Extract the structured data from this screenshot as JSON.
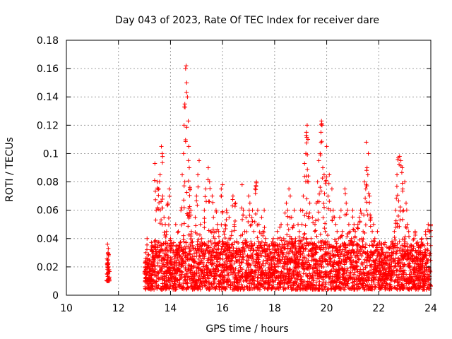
{
  "chart_data": {
    "type": "scatter",
    "title": "Day 043 of 2023, Rate Of TEC Index for receiver dare",
    "xlabel": "GPS time / hours",
    "ylabel": "ROTI / TECUs",
    "xlim": [
      10,
      24
    ],
    "ylim": [
      0,
      0.18
    ],
    "xticks": [
      "10",
      "12",
      "14",
      "16",
      "18",
      "20",
      "22",
      "24"
    ],
    "yticks": [
      "0",
      "0.02",
      "0.04",
      "0.06",
      "0.08",
      "0.1",
      "0.12",
      "0.14",
      "0.16",
      "0.18"
    ],
    "grid": true,
    "marker": "+",
    "color": "#ff0000",
    "series": [
      {
        "points": [
          [
            11.58,
            0.036
          ],
          [
            11.6,
            0.03
          ],
          [
            11.62,
            0.02
          ],
          [
            11.57,
            0.015
          ],
          [
            11.63,
            0.012
          ],
          [
            11.6,
            0.01
          ],
          [
            11.59,
            0.025
          ],
          [
            11.61,
            0.033
          ],
          [
            11.64,
            0.018
          ],
          [
            11.56,
            0.022
          ],
          [
            13.02,
            0.02
          ],
          [
            13.05,
            0.03
          ],
          [
            13.1,
            0.04
          ],
          [
            13.15,
            0.012
          ],
          [
            13.2,
            0.025
          ],
          [
            13.25,
            0.018
          ],
          [
            13.3,
            0.035
          ],
          [
            13.35,
            0.022
          ],
          [
            13.4,
            0.093
          ],
          [
            13.45,
            0.06
          ],
          [
            13.5,
            0.08
          ],
          [
            13.55,
            0.075
          ],
          [
            13.6,
            0.085
          ],
          [
            13.65,
            0.105
          ],
          [
            13.68,
            0.1
          ],
          [
            13.7,
            0.07
          ],
          [
            13.75,
            0.055
          ],
          [
            13.8,
            0.05
          ],
          [
            13.85,
            0.045
          ],
          [
            13.9,
            0.065
          ],
          [
            13.95,
            0.075
          ],
          [
            14.0,
            0.04
          ],
          [
            14.05,
            0.025
          ],
          [
            14.1,
            0.03
          ],
          [
            14.15,
            0.02
          ],
          [
            14.2,
            0.05
          ],
          [
            14.25,
            0.035
          ],
          [
            14.3,
            0.045
          ],
          [
            14.35,
            0.028
          ],
          [
            14.4,
            0.06
          ],
          [
            14.45,
            0.085
          ],
          [
            14.5,
            0.1
          ],
          [
            14.52,
            0.12
          ],
          [
            14.55,
            0.135
          ],
          [
            14.58,
            0.16
          ],
          [
            14.6,
            0.162
          ],
          [
            14.62,
            0.15
          ],
          [
            14.65,
            0.14
          ],
          [
            14.68,
            0.123
          ],
          [
            14.7,
            0.105
          ],
          [
            14.72,
            0.09
          ],
          [
            14.75,
            0.075
          ],
          [
            14.78,
            0.06
          ],
          [
            14.8,
            0.045
          ],
          [
            14.85,
            0.035
          ],
          [
            14.9,
            0.02
          ],
          [
            14.95,
            0.055
          ],
          [
            15.0,
            0.07
          ],
          [
            15.05,
            0.085
          ],
          [
            15.1,
            0.095
          ],
          [
            15.15,
            0.05
          ],
          [
            15.2,
            0.04
          ],
          [
            15.25,
            0.032
          ],
          [
            15.3,
            0.06
          ],
          [
            15.35,
            0.075
          ],
          [
            15.4,
            0.035
          ],
          [
            15.45,
            0.09
          ],
          [
            15.5,
            0.08
          ],
          [
            15.55,
            0.045
          ],
          [
            15.6,
            0.07
          ],
          [
            15.65,
            0.055
          ],
          [
            15.7,
            0.04
          ],
          [
            15.75,
            0.06
          ],
          [
            15.8,
            0.05
          ],
          [
            15.85,
            0.045
          ],
          [
            15.9,
            0.03
          ],
          [
            15.95,
            0.075
          ],
          [
            16.0,
            0.078
          ],
          [
            16.05,
            0.045
          ],
          [
            16.1,
            0.05
          ],
          [
            16.15,
            0.06
          ],
          [
            16.2,
            0.035
          ],
          [
            16.25,
            0.055
          ],
          [
            16.3,
            0.04
          ],
          [
            16.35,
            0.045
          ],
          [
            16.4,
            0.07
          ],
          [
            16.45,
            0.05
          ],
          [
            16.5,
            0.065
          ],
          [
            16.55,
            0.038
          ],
          [
            16.6,
            0.03
          ],
          [
            16.65,
            0.025
          ],
          [
            16.7,
            0.042
          ],
          [
            16.75,
            0.078
          ],
          [
            16.8,
            0.06
          ],
          [
            16.85,
            0.045
          ],
          [
            16.9,
            0.055
          ],
          [
            16.95,
            0.035
          ],
          [
            17.0,
            0.07
          ],
          [
            17.05,
            0.065
          ],
          [
            17.1,
            0.05
          ],
          [
            17.15,
            0.06
          ],
          [
            17.2,
            0.045
          ],
          [
            17.25,
            0.075
          ],
          [
            17.3,
            0.08
          ],
          [
            17.35,
            0.06
          ],
          [
            17.4,
            0.05
          ],
          [
            17.45,
            0.035
          ],
          [
            17.5,
            0.055
          ],
          [
            17.55,
            0.045
          ],
          [
            17.6,
            0.06
          ],
          [
            17.65,
            0.04
          ],
          [
            17.7,
            0.032
          ],
          [
            17.75,
            0.028
          ],
          [
            17.8,
            0.035
          ],
          [
            17.85,
            0.03
          ],
          [
            17.9,
            0.025
          ],
          [
            17.95,
            0.04
          ],
          [
            18.0,
            0.022
          ],
          [
            18.05,
            0.035
          ],
          [
            18.1,
            0.045
          ],
          [
            18.15,
            0.03
          ],
          [
            18.2,
            0.048
          ],
          [
            18.25,
            0.05
          ],
          [
            18.3,
            0.03
          ],
          [
            18.35,
            0.04
          ],
          [
            18.4,
            0.058
          ],
          [
            18.45,
            0.065
          ],
          [
            18.5,
            0.06
          ],
          [
            18.55,
            0.075
          ],
          [
            18.6,
            0.07
          ],
          [
            18.65,
            0.055
          ],
          [
            18.7,
            0.048
          ],
          [
            18.75,
            0.06
          ],
          [
            18.8,
            0.04
          ],
          [
            18.85,
            0.03
          ],
          [
            18.9,
            0.05
          ],
          [
            18.95,
            0.045
          ],
          [
            19.0,
            0.06
          ],
          [
            19.05,
            0.05
          ],
          [
            19.1,
            0.07
          ],
          [
            19.15,
            0.093
          ],
          [
            19.2,
            0.1
          ],
          [
            19.22,
            0.115
          ],
          [
            19.25,
            0.12
          ],
          [
            19.28,
            0.11
          ],
          [
            19.3,
            0.08
          ],
          [
            19.35,
            0.065
          ],
          [
            19.4,
            0.04
          ],
          [
            19.45,
            0.055
          ],
          [
            19.5,
            0.035
          ],
          [
            19.55,
            0.05
          ],
          [
            19.6,
            0.065
          ],
          [
            19.65,
            0.08
          ],
          [
            19.7,
            0.095
          ],
          [
            19.75,
            0.1
          ],
          [
            19.78,
            0.115
          ],
          [
            19.8,
            0.123
          ],
          [
            19.82,
            0.12
          ],
          [
            19.85,
            0.09
          ],
          [
            19.9,
            0.085
          ],
          [
            19.95,
            0.08
          ],
          [
            20.0,
            0.105
          ],
          [
            20.05,
            0.07
          ],
          [
            20.1,
            0.085
          ],
          [
            20.15,
            0.06
          ],
          [
            20.2,
            0.075
          ],
          [
            20.25,
            0.06
          ],
          [
            20.3,
            0.055
          ],
          [
            20.35,
            0.05
          ],
          [
            20.4,
            0.045
          ],
          [
            20.45,
            0.04
          ],
          [
            20.5,
            0.055
          ],
          [
            20.55,
            0.06
          ],
          [
            20.6,
            0.045
          ],
          [
            20.65,
            0.035
          ],
          [
            20.7,
            0.075
          ],
          [
            20.75,
            0.065
          ],
          [
            20.8,
            0.06
          ],
          [
            20.85,
            0.05
          ],
          [
            20.9,
            0.045
          ],
          [
            20.95,
            0.04
          ],
          [
            21.0,
            0.06
          ],
          [
            21.05,
            0.05
          ],
          [
            21.1,
            0.045
          ],
          [
            21.15,
            0.035
          ],
          [
            21.2,
            0.05
          ],
          [
            21.25,
            0.055
          ],
          [
            21.3,
            0.06
          ],
          [
            21.35,
            0.04
          ],
          [
            21.4,
            0.045
          ],
          [
            21.45,
            0.08
          ],
          [
            21.5,
            0.075
          ],
          [
            21.52,
            0.108
          ],
          [
            21.55,
            0.09
          ],
          [
            21.58,
            0.085
          ],
          [
            21.6,
            0.1
          ],
          [
            21.65,
            0.07
          ],
          [
            21.7,
            0.055
          ],
          [
            21.75,
            0.045
          ],
          [
            21.8,
            0.05
          ],
          [
            21.85,
            0.04
          ],
          [
            21.9,
            0.035
          ],
          [
            21.95,
            0.045
          ],
          [
            22.0,
            0.03
          ],
          [
            22.05,
            0.028
          ],
          [
            22.1,
            0.032
          ],
          [
            22.15,
            0.025
          ],
          [
            22.2,
            0.03
          ],
          [
            22.25,
            0.028
          ],
          [
            22.3,
            0.022
          ],
          [
            22.35,
            0.03
          ],
          [
            22.4,
            0.025
          ],
          [
            22.45,
            0.02
          ],
          [
            22.5,
            0.028
          ],
          [
            22.55,
            0.025
          ],
          [
            22.6,
            0.045
          ],
          [
            22.65,
            0.06
          ],
          [
            22.7,
            0.085
          ],
          [
            22.75,
            0.097
          ],
          [
            22.8,
            0.098
          ],
          [
            22.85,
            0.095
          ],
          [
            22.9,
            0.09
          ],
          [
            22.92,
            0.075
          ],
          [
            22.95,
            0.06
          ],
          [
            23.0,
            0.08
          ],
          [
            23.05,
            0.065
          ],
          [
            23.1,
            0.05
          ],
          [
            23.15,
            0.045
          ],
          [
            23.2,
            0.03
          ],
          [
            23.25,
            0.035
          ],
          [
            23.3,
            0.025
          ],
          [
            23.35,
            0.04
          ],
          [
            23.4,
            0.045
          ],
          [
            23.45,
            0.03
          ],
          [
            23.5,
            0.025
          ],
          [
            23.55,
            0.02
          ],
          [
            23.6,
            0.035
          ],
          [
            23.65,
            0.04
          ],
          [
            23.7,
            0.025
          ],
          [
            23.75,
            0.03
          ],
          [
            23.8,
            0.045
          ],
          [
            23.85,
            0.04
          ],
          [
            23.9,
            0.05
          ],
          [
            23.95,
            0.045
          ],
          [
            24.0,
            0.05
          ]
        ]
      }
    ],
    "noise_band": {
      "x_start": 13.0,
      "x_end": 24.0,
      "y_min": 0.004,
      "y_max": 0.038,
      "count": 2600
    }
  }
}
